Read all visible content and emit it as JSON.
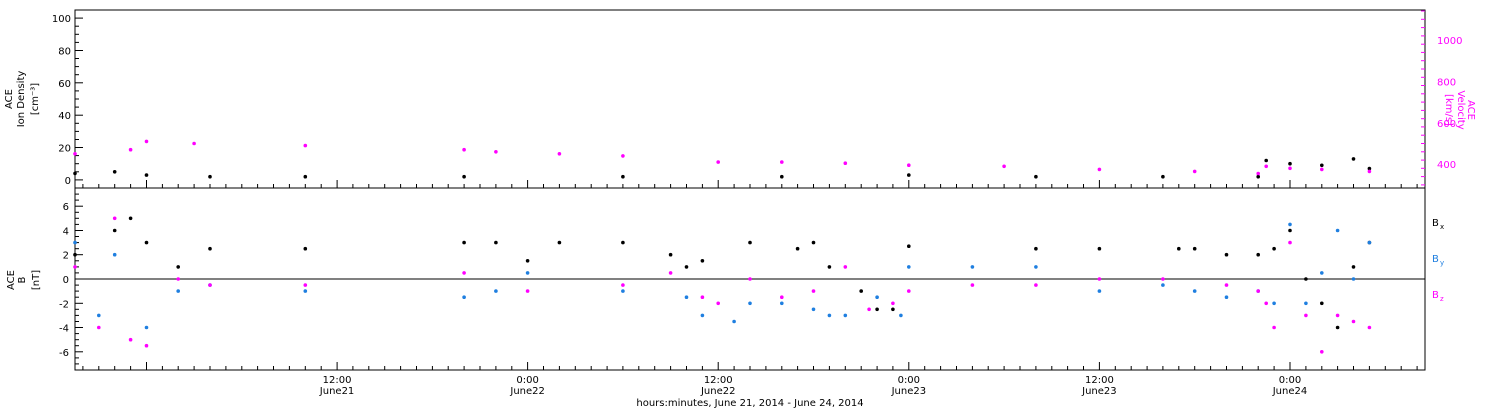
{
  "xaxis": {
    "title": "hours:minutes, June 21, 2014 - June 24, 2014",
    "range_hours": [
      -4.5,
      80.5
    ],
    "ticks": [
      {
        "hour": 12,
        "time": "12:00",
        "date": "June21"
      },
      {
        "hour": 24,
        "time": "0:00",
        "date": "June22"
      },
      {
        "hour": 36,
        "time": "12:00",
        "date": "June22"
      },
      {
        "hour": 48,
        "time": "0:00",
        "date": "June23"
      },
      {
        "hour": 60,
        "time": "12:00",
        "date": "June23"
      },
      {
        "hour": 72,
        "time": "0:00",
        "date": "June24"
      }
    ]
  },
  "top_panel": {
    "left_label": [
      "ACE",
      "Ion Density",
      "[cm⁻³]"
    ],
    "right_label": [
      "ACE",
      "Velocity",
      "[km/s]"
    ],
    "left_ticks": [
      "0",
      "20",
      "40",
      "60",
      "80",
      "100"
    ],
    "right_ticks": [
      "400",
      "600",
      "800",
      "1000"
    ],
    "colors": {
      "density": "#000000",
      "velocity": "#ff00ff"
    }
  },
  "bottom_panel": {
    "left_label": [
      "ACE",
      "B",
      "[nT]"
    ],
    "left_ticks": [
      "-6",
      "-4",
      "-2",
      "0",
      "2",
      "4",
      "6"
    ],
    "legend": [
      {
        "text": "B",
        "sub": "x",
        "color": "#000000"
      },
      {
        "text": "B",
        "sub": "y",
        "color": "#1f7fe0"
      },
      {
        "text": "B",
        "sub": "z",
        "color": "#ff00ff"
      }
    ]
  },
  "chart_data": [
    {
      "type": "scatter",
      "title": "",
      "xlabel": "hours:minutes, June 21, 2014 - June 24, 2014",
      "ylabel": "ACE Ion Density [cm-3]",
      "y2label": "ACE Velocity [km/s]",
      "xlim_hours": [
        -4.5,
        80.5
      ],
      "ylim": [
        -5,
        105
      ],
      "y2lim": [
        285,
        1145
      ],
      "series": [
        {
          "name": "Ion Density",
          "axis": "left",
          "color": "#000000",
          "x_hours": [
            -4.5,
            -2,
            0,
            4,
            10,
            20,
            30,
            40,
            48,
            56,
            64,
            70,
            70.5,
            72,
            74,
            76,
            77
          ],
          "y": [
            4,
            5,
            3,
            2,
            2,
            2,
            2,
            2,
            3,
            2,
            2,
            2,
            12,
            10,
            9,
            13,
            7
          ]
        },
        {
          "name": "Velocity",
          "axis": "right",
          "color": "#ff00ff",
          "x_hours": [
            -4.5,
            -1,
            0,
            3,
            10,
            20,
            22,
            26,
            30,
            36,
            40,
            44,
            48,
            54,
            60,
            66,
            70,
            70.5,
            72,
            74,
            77
          ],
          "y": [
            450,
            470,
            510,
            500,
            490,
            470,
            460,
            450,
            440,
            410,
            410,
            405,
            395,
            390,
            375,
            365,
            355,
            390,
            380,
            375,
            365
          ]
        }
      ]
    },
    {
      "type": "scatter",
      "title": "",
      "xlabel": "hours:minutes, June 21, 2014 - June 24, 2014",
      "ylabel": "ACE B [nT]",
      "xlim_hours": [
        -4.5,
        80.5
      ],
      "ylim": [
        -7.5,
        7.5
      ],
      "series": [
        {
          "name": "Bx",
          "color": "#000000",
          "x_hours": [
            -4.5,
            -2,
            -1,
            0,
            2,
            4,
            10,
            20,
            22,
            24,
            26,
            30,
            33,
            34,
            35,
            38,
            41,
            42,
            43,
            45,
            46,
            47,
            48,
            56,
            60,
            65,
            66,
            68,
            70,
            71,
            72,
            73,
            74,
            75,
            76,
            77
          ],
          "y": [
            2,
            4,
            5,
            3,
            1,
            2.5,
            2.5,
            3,
            3,
            1.5,
            3,
            3,
            2,
            1,
            1.5,
            3,
            2.5,
            3,
            1,
            -1,
            -2.5,
            -2.5,
            2.7,
            2.5,
            2.5,
            2.5,
            2.5,
            2,
            2,
            2.5,
            4,
            0,
            -2,
            -4,
            1,
            3
          ]
        },
        {
          "name": "By",
          "color": "#1f7fe0",
          "x_hours": [
            -4.5,
            -3,
            -2,
            0,
            2,
            4,
            10,
            20,
            22,
            24,
            30,
            34,
            35,
            37,
            38,
            40,
            42,
            43,
            44,
            46,
            47.5,
            48,
            52,
            56,
            60,
            64,
            66,
            68,
            70,
            71,
            72,
            73,
            74,
            75,
            76,
            77
          ],
          "y": [
            3,
            -3,
            2,
            -4,
            -1,
            -0.5,
            -1,
            -1.5,
            -1,
            0.5,
            -1,
            -1.5,
            -3,
            -3.5,
            -2,
            -2,
            -2.5,
            -3,
            -3,
            -1.5,
            -3,
            1,
            1,
            1,
            -1,
            -0.5,
            -1,
            -1.5,
            -1,
            -2,
            4.5,
            -2,
            0.5,
            4,
            0,
            3
          ]
        },
        {
          "name": "Bz",
          "color": "#ff00ff",
          "x_hours": [
            -4.5,
            -3,
            -2,
            -1,
            0,
            2,
            4,
            10,
            20,
            24,
            30,
            33,
            35,
            36,
            38,
            40,
            42,
            44,
            45.5,
            47,
            48,
            52,
            56,
            60,
            64,
            68,
            70,
            70.5,
            71,
            72,
            73,
            74,
            75,
            76,
            77
          ],
          "y": [
            1,
            -4,
            5,
            -5,
            -5.5,
            0,
            -0.5,
            -0.5,
            0.5,
            -1,
            -0.5,
            0.5,
            -1.5,
            -2,
            0,
            -1.5,
            -1,
            1,
            -2.5,
            -2,
            -1,
            -0.5,
            -0.5,
            0,
            0,
            -0.5,
            -1,
            -2,
            -4,
            3,
            -3,
            -6,
            -3,
            -3.5,
            -4
          ]
        }
      ]
    }
  ]
}
